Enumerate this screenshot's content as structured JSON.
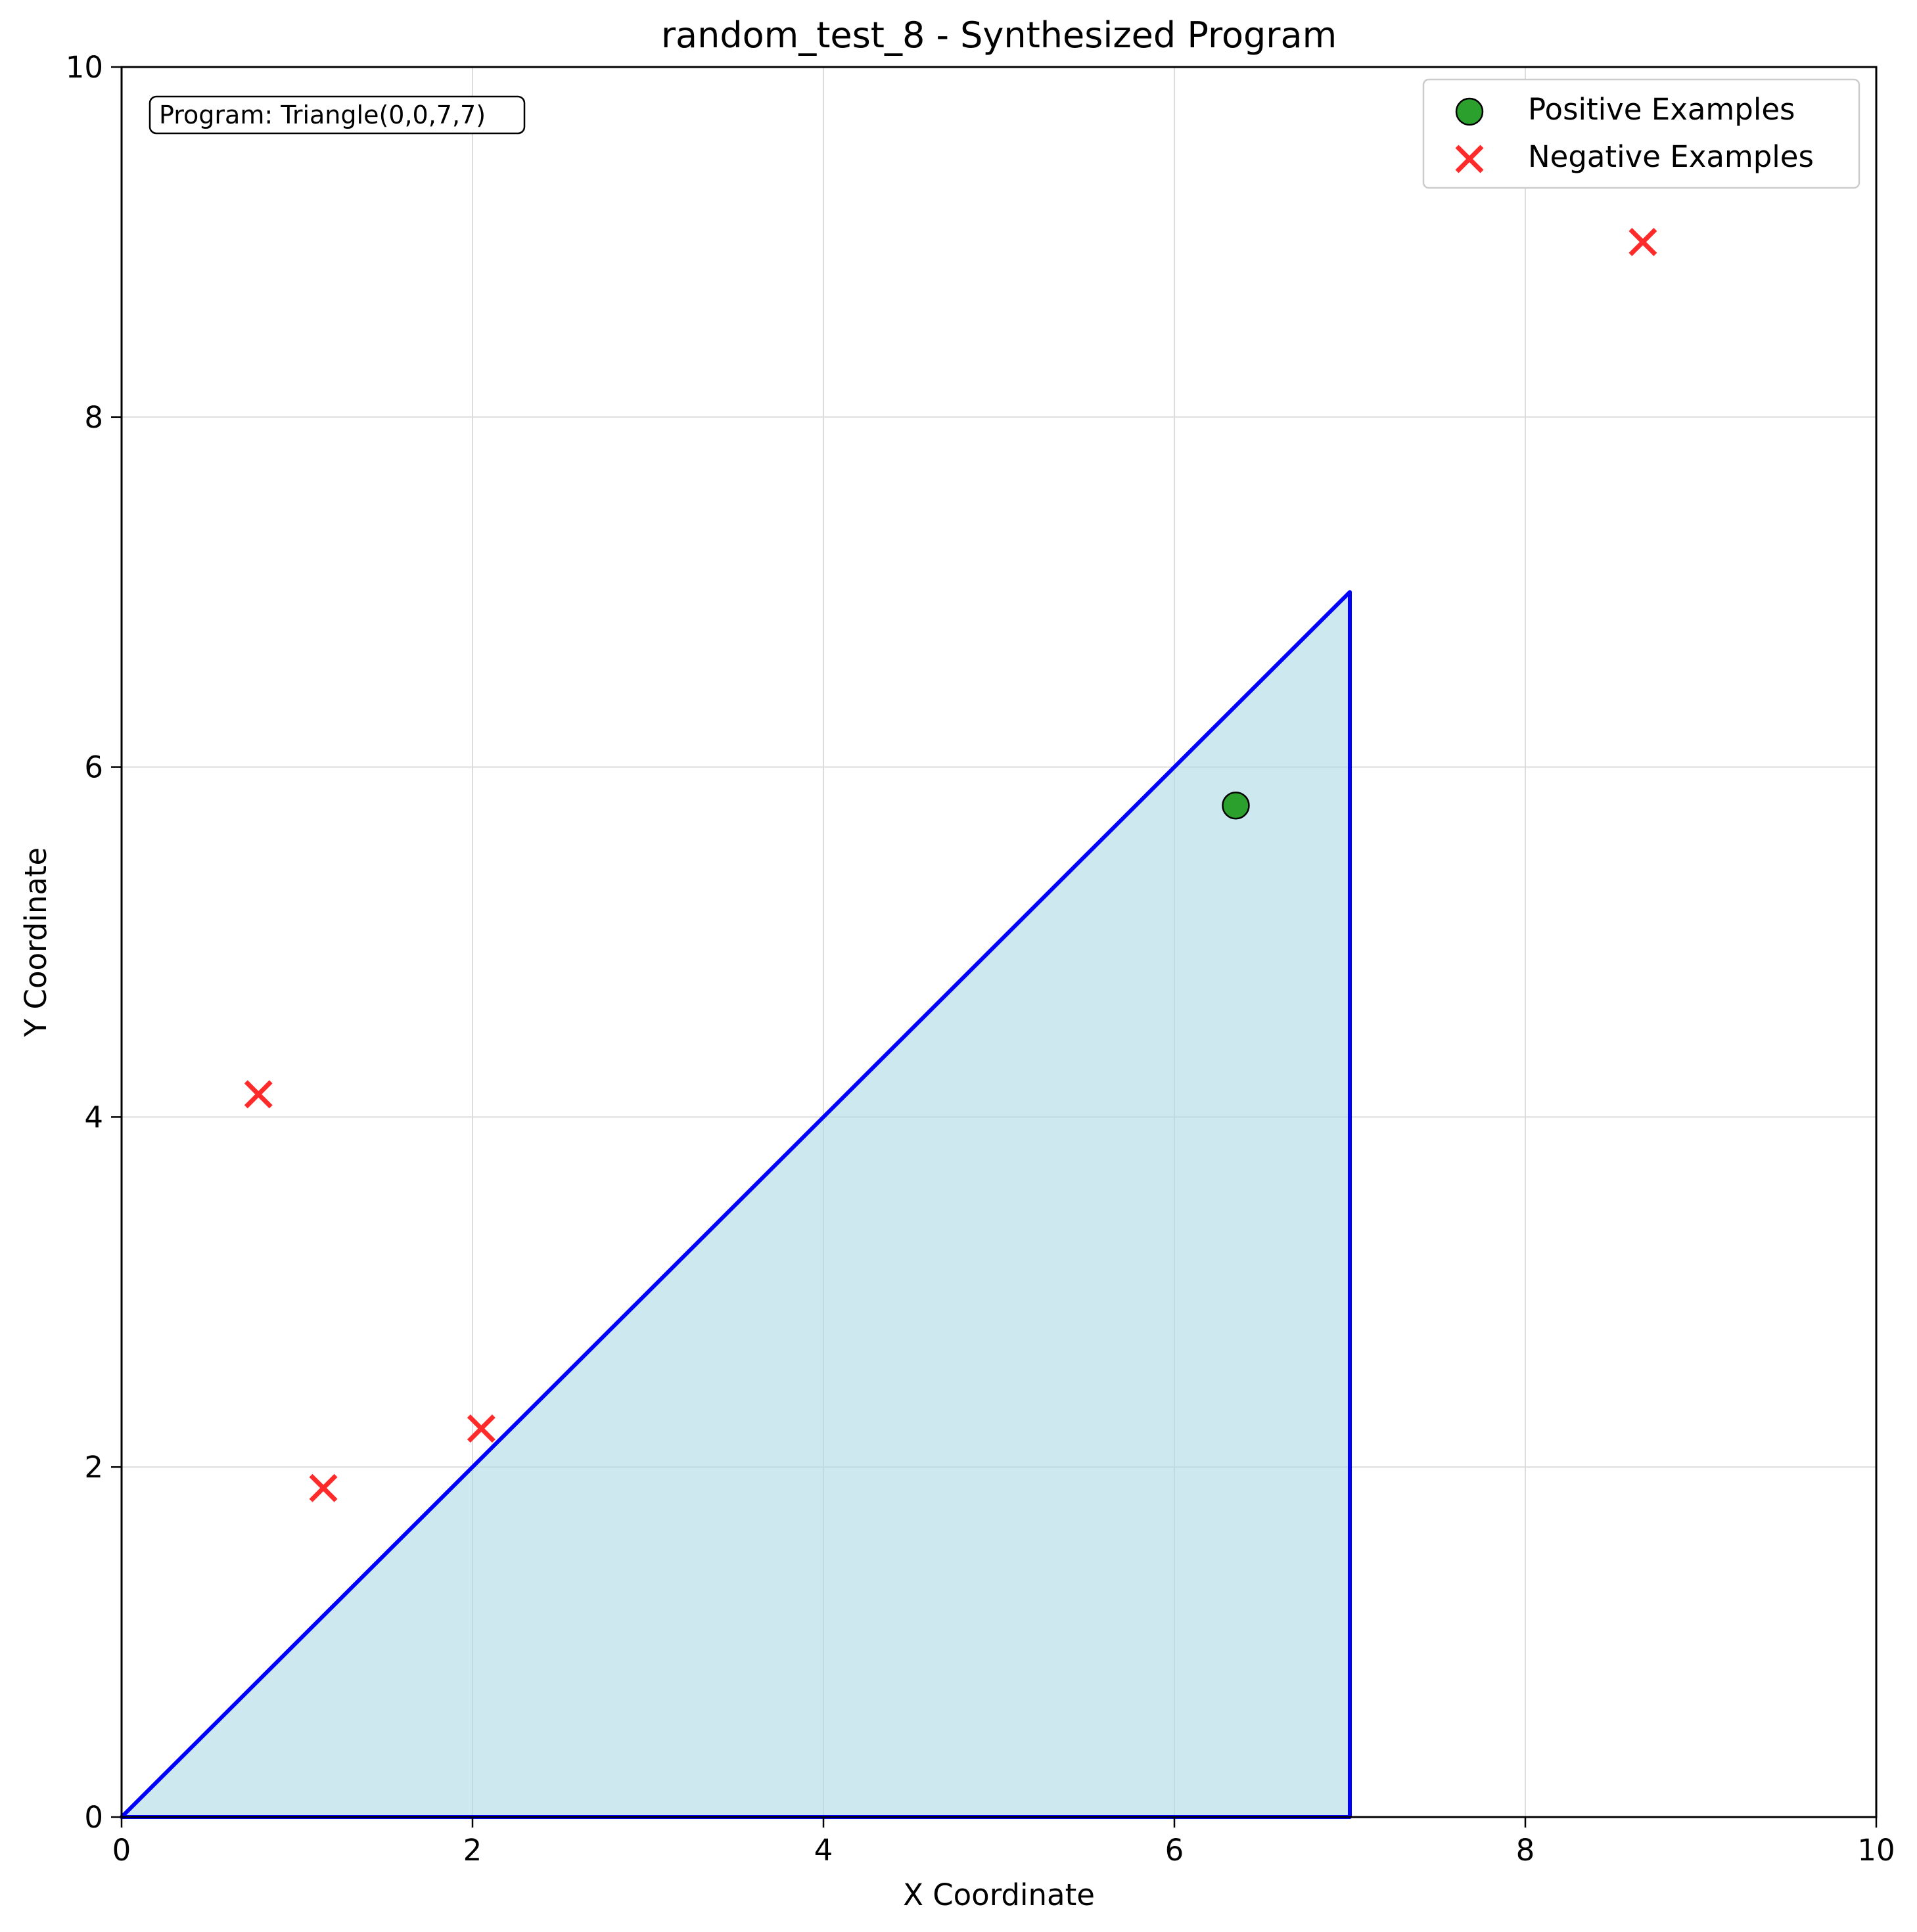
{
  "chart_data": {
    "type": "scatter",
    "title": "random_test_8 - Synthesized Program",
    "xlabel": "X Coordinate",
    "ylabel": "Y Coordinate",
    "xlim": [
      0,
      10
    ],
    "ylim": [
      0,
      10
    ],
    "xticks": [
      0,
      2,
      4,
      6,
      8,
      10
    ],
    "yticks": [
      0,
      2,
      4,
      6,
      8,
      10
    ],
    "grid": true,
    "legend_position": "top-right",
    "annotation": "Program: Triangle(0,0,7,7)",
    "region": {
      "shape": "triangle",
      "points": [
        [
          0,
          0
        ],
        [
          7,
          7
        ],
        [
          7,
          0
        ]
      ],
      "fill_color": "#add8e6",
      "edge_color": "#0000ff"
    },
    "series": [
      {
        "name": "Positive Examples",
        "marker": "circle",
        "color": "#2ca02c",
        "points": [
          [
            6.35,
            5.78
          ]
        ]
      },
      {
        "name": "Negative Examples",
        "marker": "x",
        "color": "#ff2a2a",
        "points": [
          [
            0.78,
            4.13
          ],
          [
            1.15,
            1.88
          ],
          [
            2.05,
            2.22
          ],
          [
            8.67,
            9.0
          ]
        ]
      }
    ]
  }
}
